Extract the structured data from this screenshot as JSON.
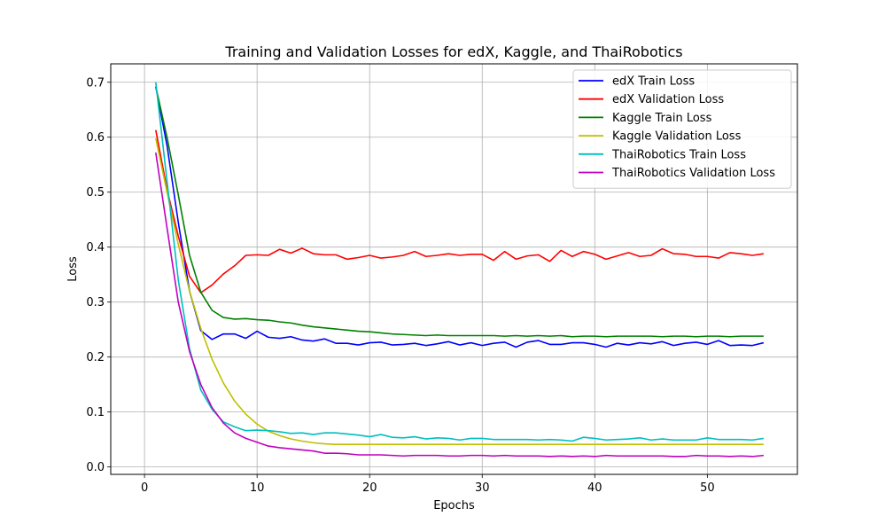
{
  "chart_data": {
    "type": "line",
    "title": "Training and Validation Losses for edX, Kaggle, and ThaiRobotics",
    "xlabel": "Epochs",
    "ylabel": "Loss",
    "xlim": [
      -3,
      58
    ],
    "ylim": [
      -0.0135,
      0.7335
    ],
    "xticks": [
      0,
      10,
      20,
      30,
      40,
      50
    ],
    "yticks": [
      0.0,
      0.1,
      0.2,
      0.3,
      0.4,
      0.5,
      0.6,
      0.7
    ],
    "xtick_labels": [
      "0",
      "10",
      "20",
      "30",
      "40",
      "50"
    ],
    "ytick_labels": [
      "0.0",
      "0.1",
      "0.2",
      "0.3",
      "0.4",
      "0.5",
      "0.6",
      "0.7"
    ],
    "grid": true,
    "legend_position": "upper right",
    "x": [
      1,
      2,
      3,
      4,
      5,
      6,
      7,
      8,
      9,
      10,
      11,
      12,
      13,
      14,
      15,
      16,
      17,
      18,
      19,
      20,
      21,
      22,
      23,
      24,
      25,
      26,
      27,
      28,
      29,
      30,
      31,
      32,
      33,
      34,
      35,
      36,
      37,
      38,
      39,
      40,
      41,
      42,
      43,
      44,
      45,
      46,
      47,
      48,
      49,
      50,
      51,
      52,
      53,
      54,
      55
    ],
    "series": [
      {
        "name": "edX Train Loss",
        "color": "#0000ff",
        "values": [
          0.692,
          0.585,
          0.445,
          0.32,
          0.248,
          0.232,
          0.242,
          0.242,
          0.234,
          0.247,
          0.236,
          0.234,
          0.237,
          0.231,
          0.229,
          0.233,
          0.225,
          0.225,
          0.222,
          0.226,
          0.227,
          0.222,
          0.223,
          0.225,
          0.221,
          0.224,
          0.228,
          0.222,
          0.226,
          0.221,
          0.225,
          0.227,
          0.218,
          0.227,
          0.23,
          0.223,
          0.223,
          0.226,
          0.226,
          0.223,
          0.218,
          0.225,
          0.222,
          0.226,
          0.224,
          0.228,
          0.221,
          0.225,
          0.227,
          0.223,
          0.23,
          0.221,
          0.222,
          0.221,
          0.226
        ]
      },
      {
        "name": "edX Validation Loss",
        "color": "#ff0000",
        "values": [
          0.613,
          0.505,
          0.42,
          0.347,
          0.317,
          0.331,
          0.351,
          0.366,
          0.385,
          0.386,
          0.385,
          0.396,
          0.389,
          0.398,
          0.388,
          0.386,
          0.386,
          0.378,
          0.381,
          0.385,
          0.38,
          0.382,
          0.385,
          0.392,
          0.383,
          0.385,
          0.388,
          0.385,
          0.387,
          0.387,
          0.376,
          0.392,
          0.378,
          0.384,
          0.386,
          0.374,
          0.394,
          0.383,
          0.392,
          0.387,
          0.378,
          0.384,
          0.39,
          0.383,
          0.385,
          0.397,
          0.388,
          0.387,
          0.383,
          0.383,
          0.38,
          0.39,
          0.388,
          0.385,
          0.388
        ]
      },
      {
        "name": "Kaggle Train Loss",
        "color": "#008000",
        "values": [
          0.692,
          0.6,
          0.495,
          0.385,
          0.318,
          0.285,
          0.272,
          0.269,
          0.27,
          0.268,
          0.267,
          0.264,
          0.262,
          0.258,
          0.255,
          0.253,
          0.251,
          0.249,
          0.247,
          0.246,
          0.244,
          0.242,
          0.241,
          0.24,
          0.239,
          0.24,
          0.239,
          0.239,
          0.239,
          0.239,
          0.239,
          0.238,
          0.239,
          0.238,
          0.239,
          0.238,
          0.239,
          0.237,
          0.238,
          0.238,
          0.237,
          0.238,
          0.238,
          0.238,
          0.238,
          0.237,
          0.238,
          0.238,
          0.237,
          0.238,
          0.238,
          0.237,
          0.238,
          0.238,
          0.238
        ]
      },
      {
        "name": "Kaggle Validation Loss",
        "color": "#bfbf00",
        "values": [
          0.598,
          0.5,
          0.405,
          0.32,
          0.252,
          0.196,
          0.153,
          0.12,
          0.096,
          0.078,
          0.065,
          0.057,
          0.051,
          0.047,
          0.044,
          0.042,
          0.041,
          0.041,
          0.041,
          0.041,
          0.041,
          0.041,
          0.041,
          0.041,
          0.041,
          0.041,
          0.041,
          0.041,
          0.041,
          0.041,
          0.041,
          0.041,
          0.041,
          0.041,
          0.041,
          0.041,
          0.041,
          0.041,
          0.041,
          0.041,
          0.041,
          0.041,
          0.041,
          0.041,
          0.041,
          0.041,
          0.041,
          0.041,
          0.041,
          0.041,
          0.041,
          0.041,
          0.041,
          0.041,
          0.041
        ]
      },
      {
        "name": "ThaiRobotics Train Loss",
        "color": "#00bfbf",
        "values": [
          0.7,
          0.52,
          0.34,
          0.215,
          0.14,
          0.105,
          0.082,
          0.073,
          0.066,
          0.067,
          0.066,
          0.064,
          0.061,
          0.062,
          0.059,
          0.062,
          0.062,
          0.06,
          0.058,
          0.055,
          0.059,
          0.054,
          0.053,
          0.055,
          0.051,
          0.053,
          0.052,
          0.049,
          0.052,
          0.052,
          0.05,
          0.05,
          0.05,
          0.05,
          0.049,
          0.05,
          0.049,
          0.047,
          0.054,
          0.052,
          0.049,
          0.05,
          0.051,
          0.053,
          0.049,
          0.051,
          0.049,
          0.049,
          0.049,
          0.053,
          0.05,
          0.05,
          0.05,
          0.049,
          0.052
        ]
      },
      {
        "name": "ThaiRobotics Validation Loss",
        "color": "#bf00bf",
        "values": [
          0.572,
          0.435,
          0.3,
          0.21,
          0.15,
          0.108,
          0.08,
          0.062,
          0.052,
          0.045,
          0.038,
          0.035,
          0.033,
          0.031,
          0.029,
          0.025,
          0.025,
          0.024,
          0.022,
          0.022,
          0.022,
          0.021,
          0.02,
          0.021,
          0.021,
          0.021,
          0.02,
          0.02,
          0.021,
          0.021,
          0.02,
          0.021,
          0.02,
          0.02,
          0.02,
          0.019,
          0.02,
          0.019,
          0.02,
          0.019,
          0.021,
          0.02,
          0.02,
          0.02,
          0.02,
          0.02,
          0.019,
          0.019,
          0.021,
          0.02,
          0.02,
          0.019,
          0.02,
          0.019,
          0.021
        ]
      }
    ]
  }
}
